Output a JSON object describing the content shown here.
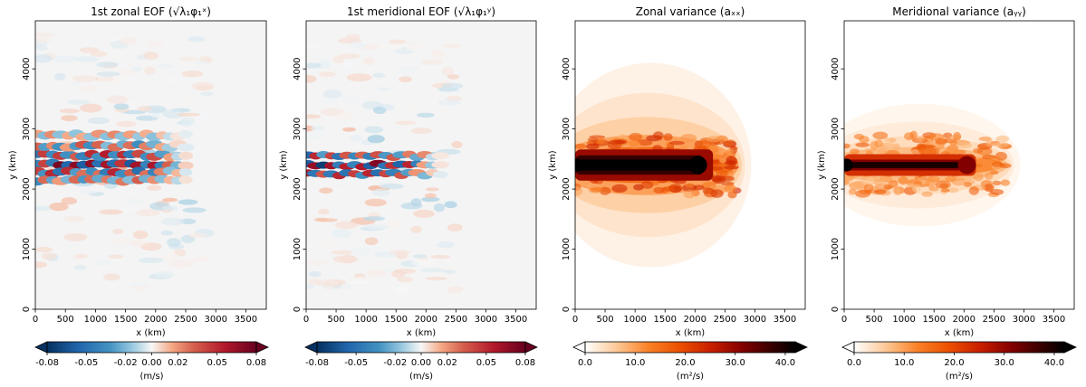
{
  "figure": {
    "panels": [
      {
        "title_main": "1st zonal EOF (",
        "title_math": "√λ₁φ₁ˣ",
        "title_close": ")"
      },
      {
        "title_main": "1st meridional EOF (",
        "title_math": "√λ₁φ₁ʸ",
        "title_close": ")"
      },
      {
        "title_main": "Zonal variance (",
        "title_math": "aₓₓ",
        "title_close": ")"
      },
      {
        "title_main": "Meridional variance (",
        "title_math": "aᵧᵧ",
        "title_close": ")"
      }
    ]
  },
  "chart_data": [
    {
      "type": "heatmap",
      "title": "1st zonal EOF (√λ₁φ₁ˣ)",
      "xlabel": "x (km)",
      "ylabel": "y (km)",
      "xlim": [
        0,
        3840
      ],
      "ylim": [
        0,
        4800
      ],
      "xticks": [
        "0",
        "500",
        "1000",
        "1500",
        "2000",
        "2500",
        "3000",
        "3500"
      ],
      "yticks": [
        "0",
        "1000",
        "2000",
        "3000",
        "4000"
      ],
      "colormap": "RdBu_r",
      "colorbar": {
        "label": "(m/s)",
        "ticks": [
          "-0.08",
          "-0.05",
          "-0.02",
          "0.00",
          "0.02",
          "0.05",
          "0.08"
        ],
        "range": [
          -0.08,
          0.08
        ],
        "extend": "both"
      },
      "jet_y": 2400,
      "pattern_extent_x": [
        0,
        2600
      ]
    },
    {
      "type": "heatmap",
      "title": "1st meridional EOF (√λ₁φ₁ʸ)",
      "xlabel": "x (km)",
      "ylabel": "y (km)",
      "xlim": [
        0,
        3840
      ],
      "ylim": [
        0,
        4800
      ],
      "xticks": [
        "0",
        "500",
        "1000",
        "1500",
        "2000",
        "2500",
        "3000",
        "3500"
      ],
      "yticks": [
        "0",
        "1000",
        "2000",
        "3000",
        "4000"
      ],
      "colormap": "RdBu_r",
      "colorbar": {
        "label": "(m/s)",
        "ticks": [
          "-0.08",
          "-0.05",
          "-0.02",
          "0.00",
          "0.02",
          "0.05",
          "0.08"
        ],
        "range": [
          -0.08,
          0.08
        ],
        "extend": "both"
      },
      "jet_y": 2400,
      "pattern_extent_x": [
        0,
        2300
      ]
    },
    {
      "type": "heatmap",
      "title": "Zonal variance (aₓₓ)",
      "xlabel": "x (km)",
      "ylabel": "y (km)",
      "xlim": [
        0,
        3840
      ],
      "ylim": [
        0,
        4800
      ],
      "xticks": [
        "0",
        "500",
        "1000",
        "1500",
        "2000",
        "2500",
        "3000",
        "3500"
      ],
      "yticks": [
        "0",
        "1000",
        "2000",
        "3000",
        "4000"
      ],
      "colormap": "gist_heat_r",
      "colorbar": {
        "label": "(m²/s)",
        "ticks": [
          "0.0",
          "10.0",
          "20.0",
          "30.0",
          "40.0"
        ],
        "range": [
          0,
          42
        ],
        "extend": "both"
      },
      "jet_y": 2400,
      "pattern_extent_x": [
        0,
        2500
      ]
    },
    {
      "type": "heatmap",
      "title": "Meridional variance (aᵧᵧ)",
      "xlabel": "x (km)",
      "ylabel": "y (km)",
      "xlim": [
        0,
        3840
      ],
      "ylim": [
        0,
        4800
      ],
      "xticks": [
        "0",
        "500",
        "1000",
        "1500",
        "2000",
        "2500",
        "3000",
        "3500"
      ],
      "yticks": [
        "0",
        "1000",
        "2000",
        "3000",
        "4000"
      ],
      "colormap": "gist_heat_r",
      "colorbar": {
        "label": "(m²/s)",
        "ticks": [
          "0.0",
          "10.0",
          "20.0",
          "30.0",
          "40.0"
        ],
        "range": [
          0,
          42
        ],
        "extend": "both"
      },
      "jet_y": 2400,
      "pattern_extent_x": [
        0,
        2400
      ]
    }
  ]
}
